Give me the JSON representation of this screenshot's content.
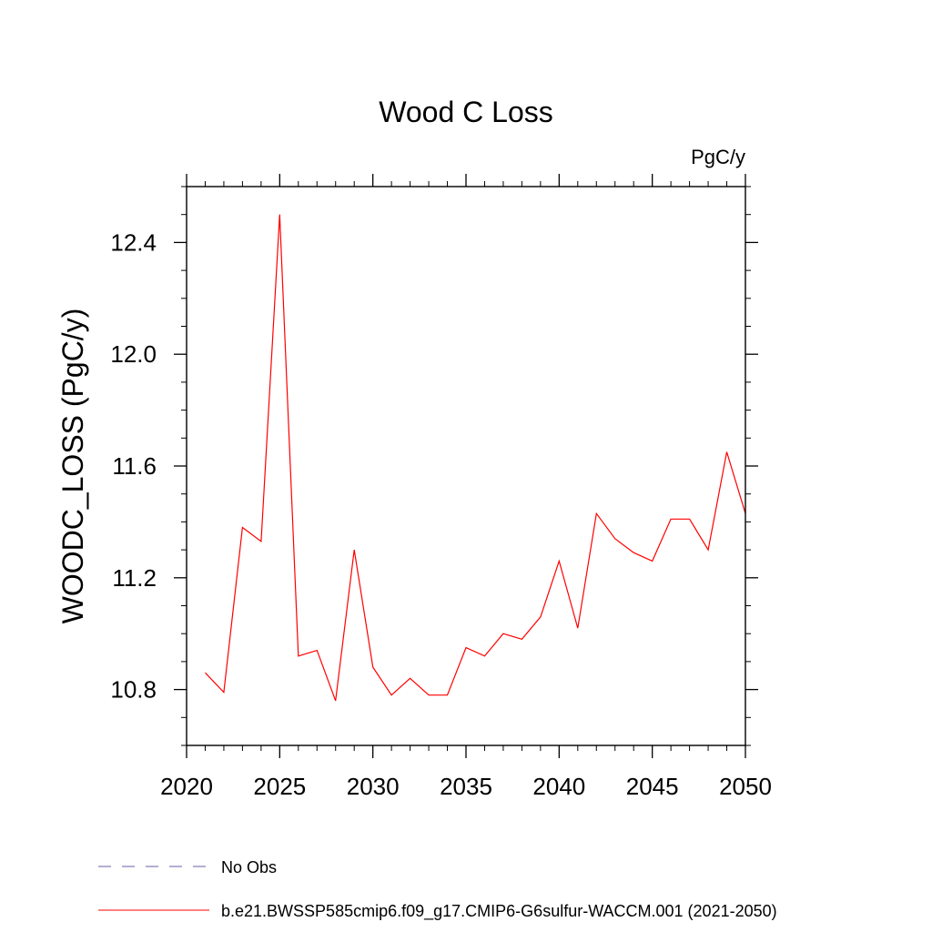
{
  "chart_data": {
    "type": "line",
    "title": "Wood C Loss",
    "units_label": "PgC/y",
    "xlabel": "",
    "ylabel": "WOODC_LOSS  (PgC/y)",
    "xlim": [
      2020,
      2050
    ],
    "ylim": [
      10.6,
      12.6
    ],
    "x_ticks": [
      2020,
      2025,
      2030,
      2035,
      2040,
      2045,
      2050
    ],
    "x_tick_labels": [
      "2020",
      "2025",
      "2030",
      "2035",
      "2040",
      "2045",
      "2050"
    ],
    "y_ticks": [
      10.8,
      11.2,
      11.6,
      12.0,
      12.4
    ],
    "y_tick_labels": [
      "10.8",
      "11.2",
      "11.6",
      "12.0",
      "12.4"
    ],
    "grid": false,
    "legend_position": "bottom",
    "series": [
      {
        "name": "No Obs",
        "color": "#6b5ea8",
        "dash": "dashed",
        "x": [],
        "values": []
      },
      {
        "name": "b.e21.BWSSP585cmip6.f09_g17.CMIP6-G6sulfur-WACCM.001 (2021-2050)",
        "color": "#ff0000",
        "dash": "solid",
        "x": [
          2021,
          2022,
          2023,
          2024,
          2025,
          2026,
          2027,
          2028,
          2029,
          2030,
          2031,
          2032,
          2033,
          2034,
          2035,
          2036,
          2037,
          2038,
          2039,
          2040,
          2041,
          2042,
          2043,
          2044,
          2045,
          2046,
          2047,
          2048,
          2049,
          2050
        ],
        "values": [
          10.86,
          10.79,
          11.38,
          11.33,
          12.5,
          10.92,
          10.94,
          10.76,
          11.3,
          10.88,
          10.78,
          10.84,
          10.78,
          10.78,
          10.95,
          10.92,
          11.0,
          10.98,
          11.06,
          11.26,
          11.02,
          11.43,
          11.34,
          11.29,
          11.26,
          11.41,
          11.41,
          11.3,
          11.65,
          11.43
        ]
      }
    ]
  }
}
